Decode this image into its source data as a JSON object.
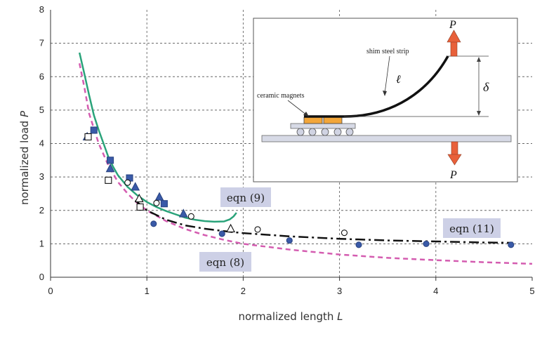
{
  "chart_data": {
    "type": "scatter",
    "xlabel": "normalized length",
    "xlabel_var": "L",
    "ylabel": "normalized load",
    "ylabel_var": "P",
    "xlim": [
      0,
      5
    ],
    "ylim": [
      0,
      8
    ],
    "x_ticks": [
      "0",
      "1",
      "2",
      "3",
      "4",
      "5"
    ],
    "y_ticks": [
      "0",
      "1",
      "2",
      "3",
      "4",
      "5",
      "6",
      "7",
      "8"
    ],
    "grid": true,
    "colors": {
      "model_9": "#2aa37a",
      "model_8": "#d45cb0",
      "model_11": "#111111",
      "marker_blue": "#3a5aa8",
      "callout_bg": "#cdd0e6",
      "arrow": "#e8603a",
      "magnet": "#f2a63a"
    },
    "series": [
      {
        "name": "eqn (9)",
        "style": "solid",
        "color": "#2aa37a",
        "points": [
          [
            0.3,
            6.72
          ],
          [
            0.35,
            6.1
          ],
          [
            0.4,
            5.45
          ],
          [
            0.45,
            4.85
          ],
          [
            0.5,
            4.4
          ],
          [
            0.55,
            4.0
          ],
          [
            0.6,
            3.6
          ],
          [
            0.65,
            3.3
          ],
          [
            0.7,
            3.05
          ],
          [
            0.8,
            2.7
          ],
          [
            0.9,
            2.45
          ],
          [
            1.0,
            2.25
          ],
          [
            1.1,
            2.1
          ],
          [
            1.2,
            1.98
          ],
          [
            1.3,
            1.88
          ],
          [
            1.4,
            1.78
          ],
          [
            1.5,
            1.72
          ],
          [
            1.6,
            1.68
          ],
          [
            1.7,
            1.66
          ],
          [
            1.8,
            1.67
          ],
          [
            1.86,
            1.73
          ],
          [
            1.9,
            1.82
          ],
          [
            1.93,
            1.93
          ]
        ]
      },
      {
        "name": "eqn (8)",
        "style": "dashed",
        "color": "#d45cb0",
        "points": [
          [
            0.3,
            6.4
          ],
          [
            0.35,
            5.7
          ],
          [
            0.4,
            4.9
          ],
          [
            0.45,
            4.45
          ],
          [
            0.5,
            4.0
          ],
          [
            0.6,
            3.35
          ],
          [
            0.7,
            2.85
          ],
          [
            0.8,
            2.5
          ],
          [
            0.9,
            2.22
          ],
          [
            1.0,
            2.0
          ],
          [
            1.2,
            1.68
          ],
          [
            1.4,
            1.44
          ],
          [
            1.6,
            1.26
          ],
          [
            1.8,
            1.12
          ],
          [
            2.0,
            1.0
          ],
          [
            2.5,
            0.82
          ],
          [
            3.0,
            0.68
          ],
          [
            3.5,
            0.58
          ],
          [
            4.0,
            0.51
          ],
          [
            4.5,
            0.45
          ],
          [
            5.0,
            0.4
          ]
        ]
      },
      {
        "name": "eqn (11)",
        "style": "dashdot",
        "color": "#111111",
        "points": [
          [
            0.88,
            2.3
          ],
          [
            1.0,
            2.0
          ],
          [
            1.2,
            1.72
          ],
          [
            1.4,
            1.55
          ],
          [
            1.6,
            1.45
          ],
          [
            1.8,
            1.38
          ],
          [
            2.0,
            1.32
          ],
          [
            2.5,
            1.22
          ],
          [
            3.0,
            1.15
          ],
          [
            3.5,
            1.1
          ],
          [
            4.0,
            1.07
          ],
          [
            4.5,
            1.04
          ],
          [
            4.8,
            1.03
          ]
        ]
      }
    ],
    "markers": [
      {
        "shape": "square",
        "fill": "#3a5aa8",
        "points": [
          [
            0.45,
            4.4
          ],
          [
            0.62,
            3.5
          ],
          [
            0.82,
            2.97
          ],
          [
            1.18,
            2.2
          ]
        ]
      },
      {
        "shape": "triangle",
        "fill": "#3a5aa8",
        "points": [
          [
            0.38,
            4.2
          ],
          [
            0.62,
            3.25
          ],
          [
            0.88,
            2.7
          ],
          [
            1.13,
            2.4
          ],
          [
            1.38,
            1.9
          ]
        ]
      },
      {
        "shape": "circle",
        "fill": "#3a5aa8",
        "points": [
          [
            1.07,
            1.6
          ],
          [
            1.78,
            1.3
          ],
          [
            2.48,
            1.1
          ],
          [
            3.2,
            0.97
          ],
          [
            3.9,
            1.0
          ],
          [
            4.78,
            0.97
          ]
        ]
      },
      {
        "shape": "square",
        "fill": "none",
        "points": [
          [
            0.39,
            4.2
          ],
          [
            0.6,
            2.9
          ],
          [
            0.93,
            2.1
          ]
        ]
      },
      {
        "shape": "triangle",
        "fill": "none",
        "points": [
          [
            0.92,
            2.35
          ],
          [
            1.87,
            1.45
          ]
        ]
      },
      {
        "shape": "circle",
        "fill": "none",
        "points": [
          [
            0.8,
            2.83
          ],
          [
            1.1,
            2.22
          ],
          [
            1.46,
            1.82
          ],
          [
            2.15,
            1.43
          ],
          [
            3.05,
            1.33
          ]
        ]
      }
    ],
    "annotations": [
      {
        "text": "eqn (9)"
      },
      {
        "text": "eqn (8)"
      },
      {
        "text": "eqn (11)"
      }
    ],
    "inset": {
      "label_top": "P",
      "label_bottom": "P",
      "label_strip": "shim steel strip",
      "label_magnets": "ceramic magnets",
      "label_length": "ℓ",
      "label_deflection": "δ"
    }
  }
}
